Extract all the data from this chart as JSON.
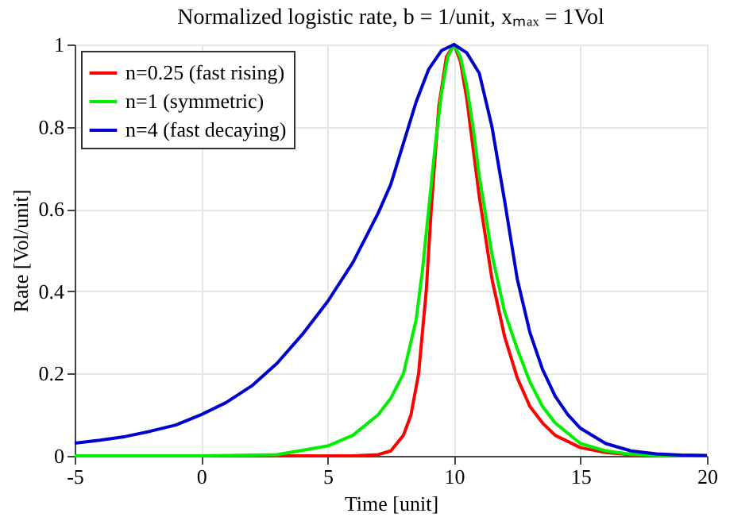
{
  "chart_data": {
    "type": "line",
    "title": "Normalized logistic rate, b = 1/unit, xₘₐₓ = 1Vol",
    "xlabel": "Time [unit]",
    "ylabel": "Rate [Vol/unit]",
    "xlim": [
      -5,
      20
    ],
    "xticks": [
      -5,
      0,
      5,
      10,
      15,
      20
    ],
    "ylim": [
      0,
      1
    ],
    "yticks": [
      0,
      0.2,
      0.4,
      0.6,
      0.8,
      1
    ],
    "grid": true,
    "legend": "top left",
    "marker": "none",
    "line_style": "solid",
    "series": [
      {
        "name": "n=0.25 (fast rising)",
        "color": "#ff0000",
        "x": [
          -5,
          6,
          7,
          7.5,
          8,
          8.3,
          8.6,
          8.9,
          9.1,
          9.4,
          9.7,
          10,
          10.25,
          10.5,
          10.75,
          11,
          11.5,
          12,
          12.5,
          13,
          13.5,
          14,
          15,
          16,
          17,
          20
        ],
        "values": [
          0,
          0,
          0.003,
          0.012,
          0.05,
          0.1,
          0.2,
          0.4,
          0.6,
          0.85,
          0.97,
          1,
          0.96,
          0.87,
          0.75,
          0.63,
          0.43,
          0.29,
          0.19,
          0.12,
          0.08,
          0.05,
          0.02,
          0.008,
          0.003,
          0
        ]
      },
      {
        "name": "n=1 (symmetric)",
        "color": "#00ee00",
        "x": [
          -5,
          0,
          3,
          5,
          6,
          7,
          7.5,
          8,
          8.5,
          8.75,
          9,
          9.25,
          9.5,
          9.75,
          10,
          10.25,
          10.5,
          10.75,
          11,
          11.5,
          12,
          12.5,
          13,
          13.5,
          14,
          15,
          16,
          17,
          18,
          20
        ],
        "values": [
          0,
          0,
          0.003,
          0.024,
          0.05,
          0.1,
          0.14,
          0.2,
          0.33,
          0.45,
          0.6,
          0.75,
          0.88,
          0.97,
          1,
          0.97,
          0.9,
          0.8,
          0.68,
          0.49,
          0.35,
          0.26,
          0.18,
          0.12,
          0.08,
          0.03,
          0.012,
          0.004,
          0.001,
          0
        ]
      },
      {
        "name": "n=4 (fast decaying)",
        "color": "#0000cc",
        "x": [
          -5,
          -4,
          -3,
          -2,
          -1,
          0,
          1,
          2,
          3,
          4,
          5,
          6,
          7,
          7.5,
          8,
          8.5,
          9,
          9.5,
          10,
          10.5,
          11,
          11.5,
          12,
          12.5,
          13,
          13.5,
          14,
          14.5,
          15,
          16,
          17,
          18,
          19,
          20
        ],
        "values": [
          0.031,
          0.038,
          0.047,
          0.06,
          0.075,
          0.1,
          0.13,
          0.17,
          0.225,
          0.295,
          0.375,
          0.47,
          0.59,
          0.66,
          0.76,
          0.86,
          0.94,
          0.985,
          1,
          0.98,
          0.93,
          0.8,
          0.62,
          0.43,
          0.3,
          0.21,
          0.145,
          0.1,
          0.067,
          0.03,
          0.012,
          0.005,
          0.002,
          0.001
        ]
      }
    ]
  }
}
